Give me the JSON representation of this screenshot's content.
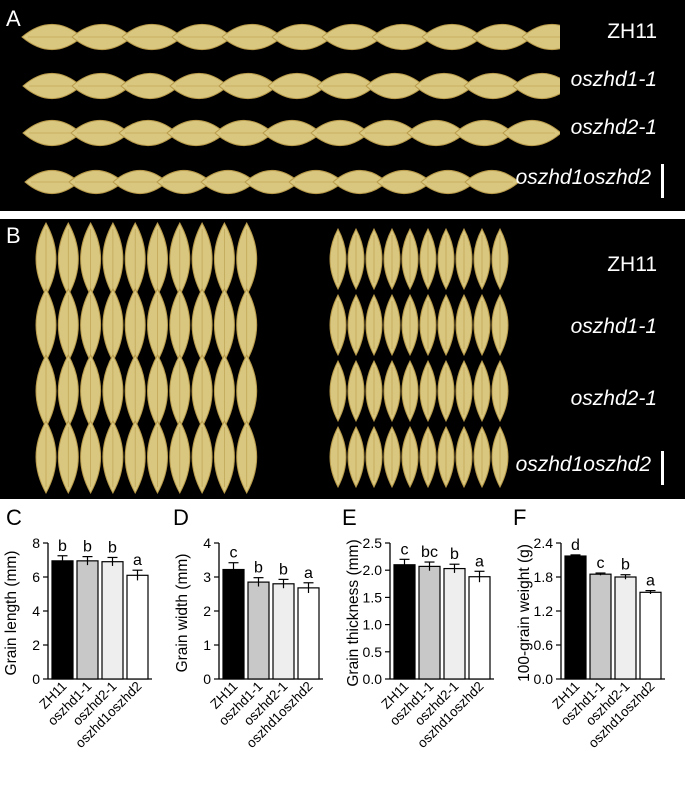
{
  "panels": {
    "A": {
      "label": "A",
      "genotypes": [
        "ZH11",
        "oszhd1-1",
        "oszhd2-1",
        "oszhd1oszhd2"
      ]
    },
    "B": {
      "label": "B",
      "genotypes": [
        "ZH11",
        "oszhd1-1",
        "oszhd2-1",
        "oszhd1oszhd2"
      ]
    }
  },
  "colors": {
    "grain": "#d9c77f",
    "grain_dark": "#b89a4a",
    "photo_bg": "#000000"
  },
  "chart_data": [
    {
      "panel": "C",
      "type": "bar",
      "categories": [
        "ZH11",
        "oszhd1-1",
        "oszhd2-1",
        "oszhd1oszhd2"
      ],
      "values": [
        6.95,
        6.95,
        6.9,
        6.1
      ],
      "errors": [
        0.3,
        0.25,
        0.25,
        0.3
      ],
      "letters": [
        "b",
        "b",
        "b",
        "a"
      ],
      "colors": [
        "#000000",
        "#c8c8c8",
        "#eeeeee",
        "#ffffff"
      ],
      "ylabel": "Grain length (mm)",
      "ylim": [
        0,
        8
      ],
      "yticks": [
        0,
        2,
        4,
        6,
        8
      ],
      "ytick_labels": [
        "0",
        "2",
        "4",
        "6",
        "8"
      ]
    },
    {
      "panel": "D",
      "type": "bar",
      "categories": [
        "ZH11",
        "oszhd1-1",
        "oszhd2-1",
        "oszhd1oszhd2"
      ],
      "values": [
        3.22,
        2.85,
        2.8,
        2.68
      ],
      "errors": [
        0.2,
        0.13,
        0.13,
        0.15
      ],
      "letters": [
        "c",
        "b",
        "b",
        "a"
      ],
      "colors": [
        "#000000",
        "#c8c8c8",
        "#eeeeee",
        "#ffffff"
      ],
      "ylabel": "Grain width (mm)",
      "ylim": [
        0,
        4
      ],
      "yticks": [
        0,
        1,
        2,
        3,
        4
      ],
      "ytick_labels": [
        "0",
        "1",
        "2",
        "3",
        "4"
      ]
    },
    {
      "panel": "E",
      "type": "bar",
      "categories": [
        "ZH11",
        "oszhd1-1",
        "oszhd2-1",
        "oszhd1oszhd2"
      ],
      "values": [
        2.1,
        2.07,
        2.03,
        1.88
      ],
      "errors": [
        0.1,
        0.08,
        0.08,
        0.1
      ],
      "letters": [
        "c",
        "bc",
        "b",
        "a"
      ],
      "colors": [
        "#000000",
        "#c8c8c8",
        "#eeeeee",
        "#ffffff"
      ],
      "ylabel": "Grain thickness (mm)",
      "ylim": [
        0,
        2.5
      ],
      "yticks": [
        0,
        0.5,
        1,
        1.5,
        2,
        2.5
      ],
      "ytick_labels": [
        "0.0",
        "0.5",
        "1.0",
        "1.5",
        "2.0",
        "2.5"
      ]
    },
    {
      "panel": "F",
      "type": "bar",
      "categories": [
        "ZH11",
        "oszhd1-1",
        "oszhd2-1",
        "oszhd1oszhd2"
      ],
      "values": [
        2.17,
        1.85,
        1.8,
        1.53
      ],
      "errors": [
        0.02,
        0.02,
        0.04,
        0.03
      ],
      "letters": [
        "d",
        "c",
        "b",
        "a"
      ],
      "colors": [
        "#000000",
        "#c8c8c8",
        "#eeeeee",
        "#ffffff"
      ],
      "ylabel": "100-grain weight (g)",
      "ylim": [
        0,
        2.4
      ],
      "yticks": [
        0,
        0.6,
        1.2,
        1.8,
        2.4
      ],
      "ytick_labels": [
        "0.0",
        "0.6",
        "1.2",
        "1.8",
        "2.4"
      ]
    }
  ]
}
